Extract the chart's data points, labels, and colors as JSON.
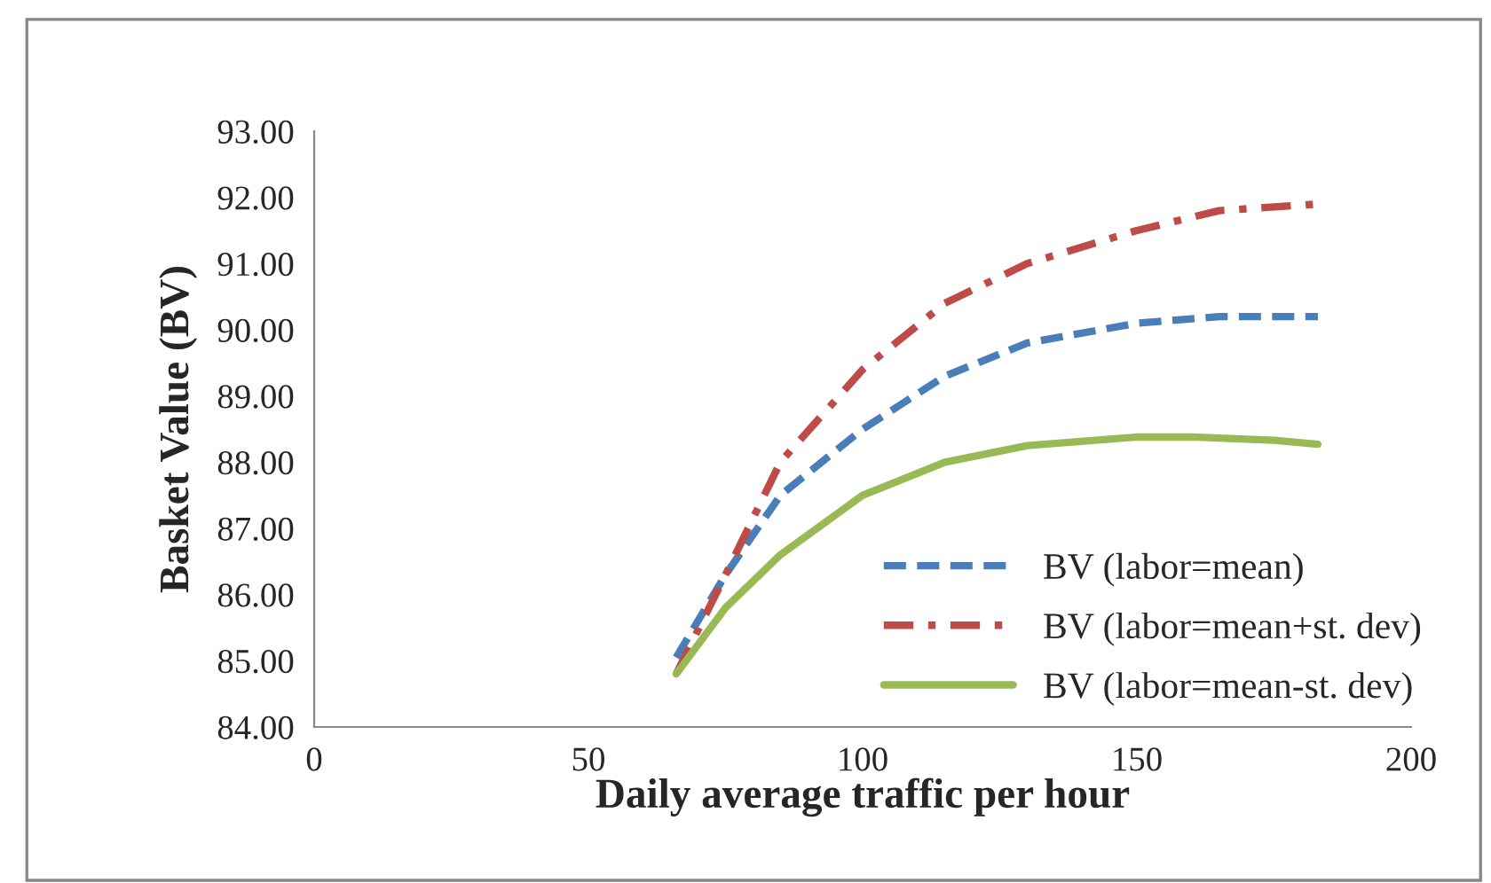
{
  "chart_data": {
    "type": "line",
    "xlabel": "Daily average traffic per hour",
    "ylabel": "Basket Value (BV)",
    "xlim": [
      0,
      200
    ],
    "xticks": [
      0,
      50,
      100,
      150,
      200
    ],
    "ylim": [
      84,
      93
    ],
    "yticks": [
      {
        "value": 84,
        "label": "84.00"
      },
      {
        "value": 85,
        "label": "85.00"
      },
      {
        "value": 86,
        "label": "86.00"
      },
      {
        "value": 87,
        "label": "87.00"
      },
      {
        "value": 88,
        "label": "88.00"
      },
      {
        "value": 89,
        "label": "89.00"
      },
      {
        "value": 90,
        "label": "90.00"
      },
      {
        "value": 91,
        "label": "91.00"
      },
      {
        "value": 92,
        "label": "92.00"
      },
      {
        "value": 93,
        "label": "93.00"
      }
    ],
    "grid": false,
    "legend": "bottom right",
    "series": [
      {
        "name": "BV (labor=mean)",
        "color": "#4a7ebb",
        "line_style": "dashed",
        "x": [
          66,
          75,
          85,
          100,
          115,
          130,
          150,
          165,
          183
        ],
        "values": [
          85.05,
          86.3,
          87.5,
          88.5,
          89.3,
          89.8,
          90.1,
          90.2,
          90.2
        ]
      },
      {
        "name": "BV (labor=mean+st. dev)",
        "color": "#be4b48",
        "line_style": "dashdot",
        "x": [
          66,
          75,
          85,
          100,
          115,
          130,
          150,
          165,
          183
        ],
        "values": [
          84.8,
          86.3,
          88.0,
          89.4,
          90.4,
          91.0,
          91.5,
          91.8,
          91.9
        ]
      },
      {
        "name": "BV (labor=mean-st. dev)",
        "color": "#98b954",
        "line_style": "solid",
        "x": [
          66,
          75,
          85,
          100,
          115,
          130,
          150,
          160,
          175,
          183
        ],
        "values": [
          84.8,
          85.8,
          86.6,
          87.5,
          88.0,
          88.25,
          88.38,
          88.38,
          88.33,
          88.27
        ]
      }
    ]
  }
}
